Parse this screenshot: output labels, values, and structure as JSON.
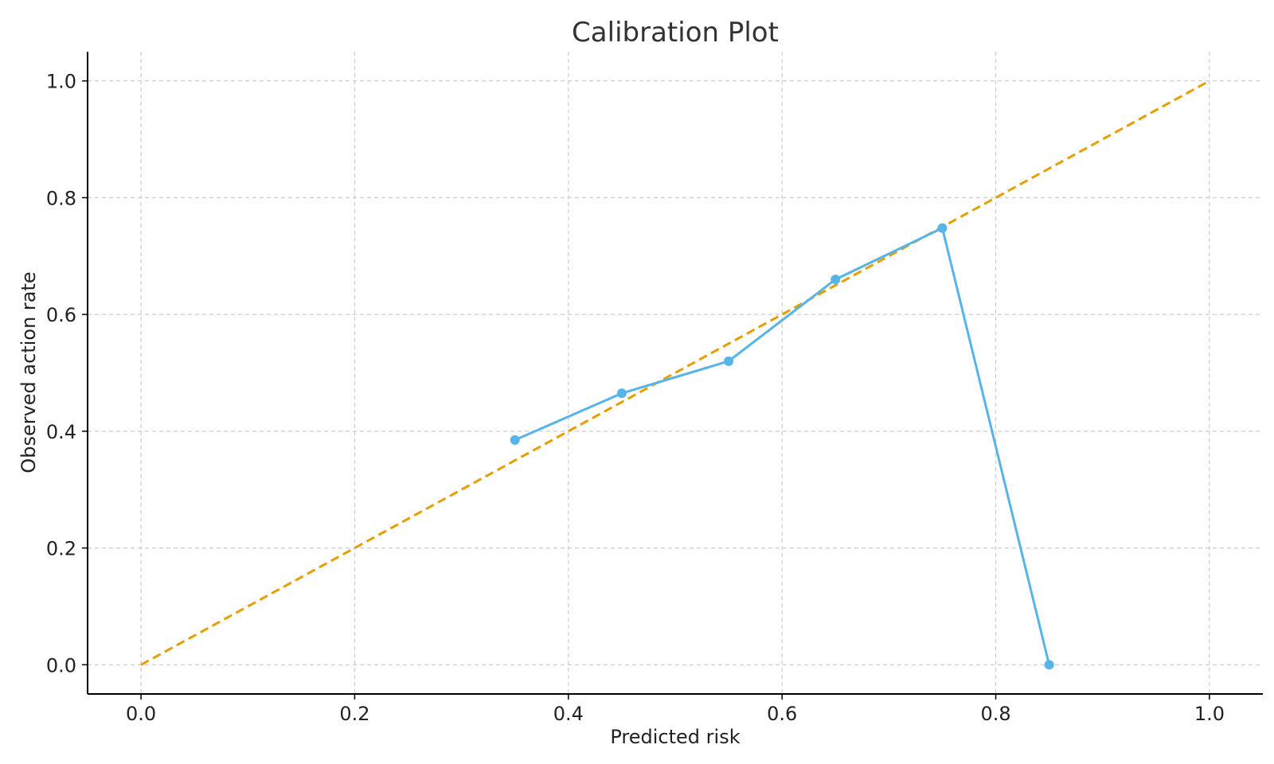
{
  "chart_data": {
    "type": "line",
    "title": "Calibration Plot",
    "xlabel": "Predicted risk",
    "ylabel": "Observed action rate",
    "xlim": [
      -0.05,
      1.05
    ],
    "ylim": [
      -0.05,
      1.05
    ],
    "xticks": [
      "0.0",
      "0.2",
      "0.4",
      "0.6",
      "0.8",
      "1.0"
    ],
    "yticks": [
      "0.0",
      "0.2",
      "0.4",
      "0.6",
      "0.8",
      "1.0"
    ],
    "grid": true,
    "series": [
      {
        "x": [
          0.35,
          0.45,
          0.55,
          0.65,
          0.75,
          0.85
        ],
        "y": [
          0.385,
          0.465,
          0.52,
          0.66,
          0.748,
          0.0
        ],
        "color": "#56B4E9",
        "style": "solid",
        "markers": true
      },
      {
        "x": [
          0.0,
          1.0
        ],
        "y": [
          0.0,
          1.0
        ],
        "color": "#E69F00",
        "style": "dashed",
        "markers": false
      }
    ]
  }
}
